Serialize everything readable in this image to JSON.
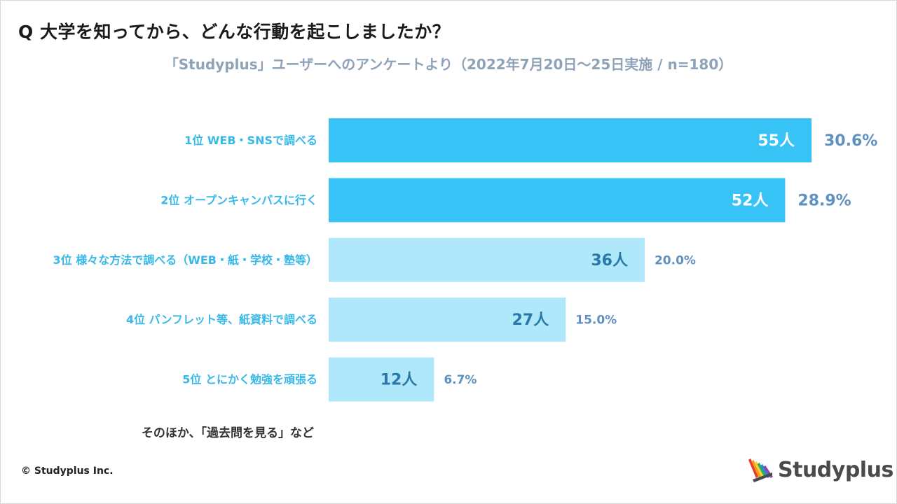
{
  "title": "Q 大学を知ってから、どんな行動を起こしましたか？",
  "subtitle": "「Studyplus」ユーザーへのアンケートより（2022年7月20日〜25日実施 / n=180）",
  "chart_data": {
    "type": "bar",
    "orientation": "horizontal",
    "categories": [
      "1位 WEB・SNSで調べる",
      "2位 オープンキャンパスに行く",
      "3位 様々な方法で調べる（WEB・紙・学校・塾等）",
      "4位 パンフレット等、紙資料で調べる",
      "5位 とにかく勉強を頑張る"
    ],
    "values": [
      55,
      52,
      36,
      27,
      12
    ],
    "value_labels": [
      "55人",
      "52人",
      "36人",
      "27人",
      "12人"
    ],
    "percent_labels": [
      "30.6%",
      "28.9%",
      "20.0%",
      "15.0%",
      "6.7%"
    ],
    "xlim": [
      0,
      55
    ],
    "highlight_count": 2,
    "colors": {
      "highlight": "#38c3f7",
      "normal": "#b0e8fb",
      "highlight_value_text": "#ffffff",
      "normal_value_text": "#2a78a8",
      "category_text": "#38b8e8",
      "percent_text": "#5f91c0"
    }
  },
  "note": "そのほか、「過去問を見る」など",
  "copyright": "© Studyplus Inc.",
  "logo": {
    "text": "Studyplus",
    "icon": "pencils-icon",
    "stripe_colors": [
      "#e53935",
      "#f39c12",
      "#f4d03f",
      "#27ae60",
      "#2e86de",
      "#8e44ad"
    ]
  }
}
